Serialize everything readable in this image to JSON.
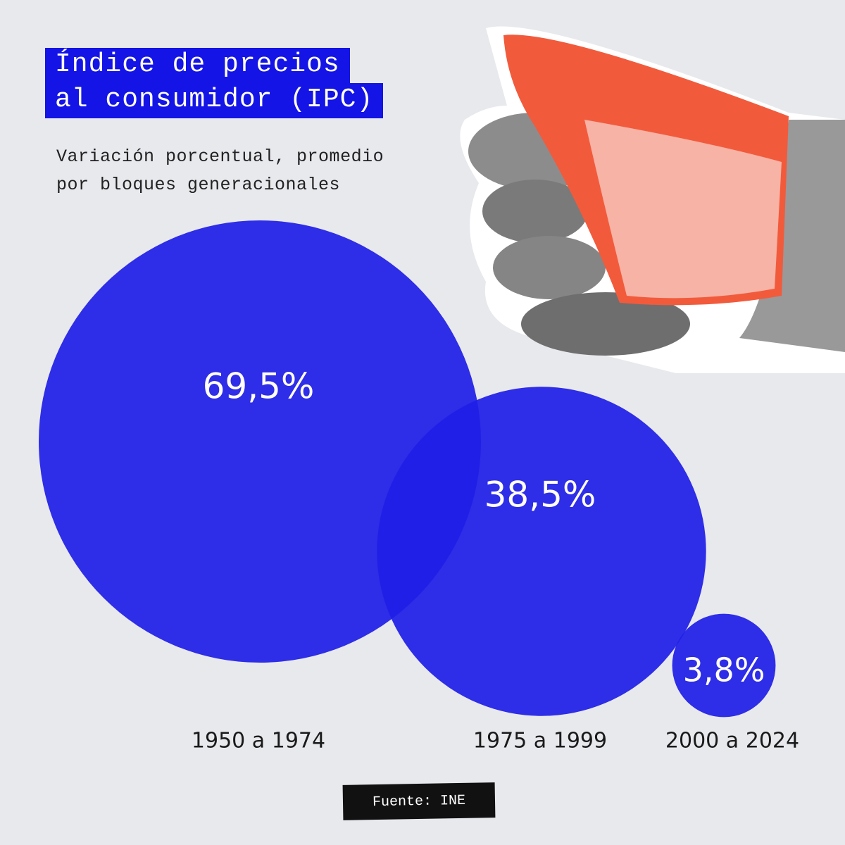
{
  "chart_data": {
    "type": "bubble",
    "title": [
      "Índice de precios",
      "al consumidor (IPC)"
    ],
    "subtitle": [
      "Variación porcentual, promedio",
      "por bloques generacionales"
    ],
    "categories": [
      "1950 a 1974",
      "1975 a 1999",
      "2000 a 2024"
    ],
    "values": [
      69.5,
      38.5,
      3.8
    ],
    "value_labels": [
      "69,5%",
      "38,5%",
      "3,8%"
    ],
    "color": "#1f1ee6",
    "source": "Fuente: INE"
  }
}
